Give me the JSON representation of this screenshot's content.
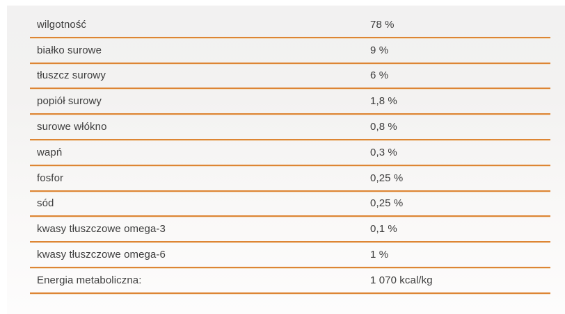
{
  "panel": {
    "kind": "analytical-composition-table"
  },
  "table": {
    "rows": [
      {
        "label": "wilgotność",
        "value": "78 %"
      },
      {
        "label": "białko surowe",
        "value": "9 %"
      },
      {
        "label": "tłuszcz surowy",
        "value": "6 %"
      },
      {
        "label": "popiół surowy",
        "value": "1,8 %"
      },
      {
        "label": "surowe włókno",
        "value": "0,8 %"
      },
      {
        "label": "wapń",
        "value": "0,3 %"
      },
      {
        "label": "fosfor",
        "value": "0,25 %"
      },
      {
        "label": "sód",
        "value": "0,25 %"
      },
      {
        "label": "kwasy tłuszczowe omega-3",
        "value": "0,1 %"
      },
      {
        "label": "kwasy tłuszczowe omega-6",
        "value": "1 %"
      },
      {
        "label": "Energia metaboliczna:",
        "value": "1 070 kcal/kg"
      }
    ]
  },
  "colors": {
    "divider": "#dd8534",
    "divider_glow": "#f3e0c6",
    "text": "#3d3d3d",
    "panel_bg_top": "#f2f1f1",
    "panel_bg_bottom": "#fdfcfc",
    "page_bg": "#ffffff"
  }
}
